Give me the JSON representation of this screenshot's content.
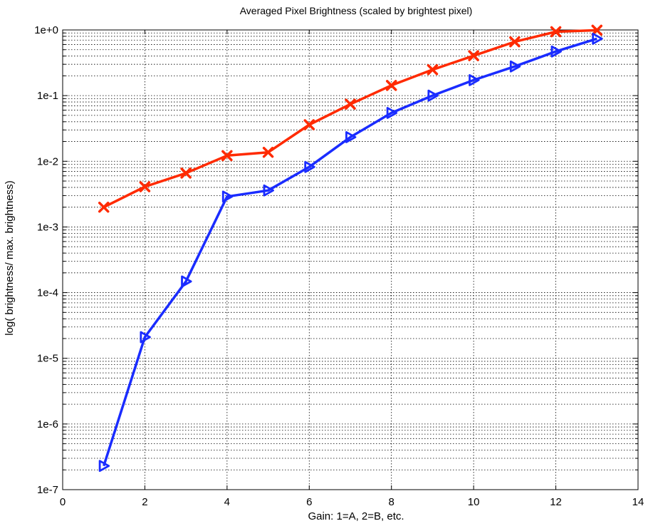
{
  "chart_data": {
    "type": "line",
    "title": "Averaged Pixel Brightness (scaled by brightest pixel)",
    "xlabel": "Gain: 1=A, 2=B, etc.",
    "ylabel": "log( brightness/ max. brightness)",
    "xlim": [
      0,
      14
    ],
    "ylim": [
      1e-07,
      1
    ],
    "yscale": "log",
    "grid": true,
    "x_ticks": [
      0,
      2,
      4,
      6,
      8,
      10,
      12,
      14
    ],
    "x_tick_labels": [
      "0",
      "2",
      "4",
      "6",
      "8",
      "10",
      "12",
      "14"
    ],
    "y_ticks": [
      1e-07,
      1e-06,
      1e-05,
      0.0001,
      0.001,
      0.01,
      0.1,
      1
    ],
    "y_tick_labels": [
      "1e-7",
      "1e-6",
      "1e-5",
      "1e-4",
      "1e-3",
      "1e-2",
      "1e-1",
      "1e+0"
    ],
    "x": [
      1,
      2,
      3,
      4,
      5,
      6,
      7,
      8,
      9,
      10,
      11,
      12,
      13
    ],
    "series": [
      {
        "color": "#ff2a00",
        "marker": "x",
        "values": [
          0.002,
          0.0041,
          0.0066,
          0.0122,
          0.0137,
          0.036,
          0.074,
          0.143,
          0.248,
          0.405,
          0.66,
          0.94,
          0.99
        ]
      },
      {
        "color": "#1a2cff",
        "marker": "triangle-right",
        "values": [
          2.3e-07,
          2.1e-05,
          0.000148,
          0.0029,
          0.0036,
          0.0082,
          0.0233,
          0.0545,
          0.1,
          0.172,
          0.278,
          0.47,
          0.735
        ]
      }
    ]
  }
}
